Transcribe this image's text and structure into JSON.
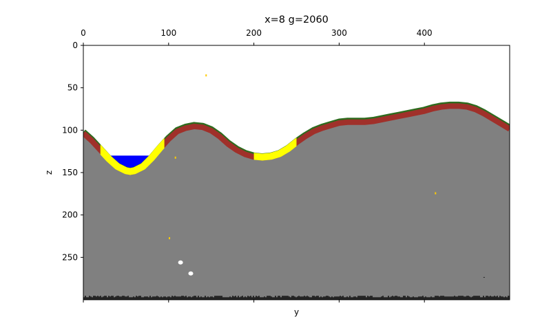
{
  "chart_data": {
    "type": "heatmap",
    "title": "x=8 g=2060",
    "xlabel": "y",
    "ylabel": "z",
    "xlim": [
      0,
      500
    ],
    "ylim": [
      300,
      0
    ],
    "x_ticks_top": [
      0,
      100,
      200,
      300,
      400
    ],
    "x_ticks_bottom": [
      0,
      100,
      200,
      300,
      400
    ],
    "y_ticks": [
      0,
      50,
      100,
      150,
      200,
      250
    ],
    "grid": false,
    "legend": "none",
    "colors": {
      "air": "#ffffff",
      "rock": "#808080",
      "soil": "#a0302a",
      "grass": "#2e6b1e",
      "sand": "#ffff00",
      "water": "#0000ff",
      "bedrock": "#222222",
      "ore": "#ffcc00"
    },
    "surface_profile": {
      "y": [
        0,
        10,
        20,
        30,
        40,
        50,
        55,
        60,
        70,
        80,
        90,
        100,
        110,
        120,
        130,
        140,
        150,
        160,
        170,
        180,
        190,
        200,
        210,
        220,
        230,
        240,
        250,
        260,
        270,
        280,
        290,
        300,
        310,
        320,
        330,
        340,
        350,
        360,
        370,
        380,
        390,
        400,
        410,
        420,
        430,
        440,
        450,
        460,
        470,
        480,
        490,
        500
      ],
      "z": [
        102,
        111,
        122,
        133,
        142,
        147,
        148,
        147,
        142,
        132,
        120,
        109,
        100,
        96,
        94,
        95,
        99,
        106,
        115,
        122,
        127,
        130,
        131,
        130,
        127,
        121,
        113,
        106,
        100,
        96,
        93,
        90,
        89,
        89,
        89,
        88,
        86,
        84,
        82,
        80,
        78,
        76,
        73,
        71,
        70,
        70,
        71,
        74,
        79,
        85,
        91,
        97
      ]
    },
    "water_pool": {
      "y_from": 24,
      "y_to": 90,
      "level_z": 130
    },
    "sand_patches": [
      {
        "y_from": 20,
        "y_to": 95
      },
      {
        "y_from": 200,
        "y_to": 250
      }
    ],
    "bedrock_z": 297,
    "points": [
      {
        "y": 144,
        "z": 35,
        "kind": "ore"
      },
      {
        "y": 108,
        "z": 132,
        "kind": "ore"
      },
      {
        "y": 101,
        "z": 227,
        "kind": "ore"
      },
      {
        "y": 413,
        "z": 174,
        "kind": "ore"
      },
      {
        "y": 114,
        "z": 256,
        "kind": "air"
      },
      {
        "y": 126,
        "z": 269,
        "kind": "air"
      },
      {
        "y": 470,
        "z": 274,
        "kind": "bedrock"
      }
    ]
  }
}
